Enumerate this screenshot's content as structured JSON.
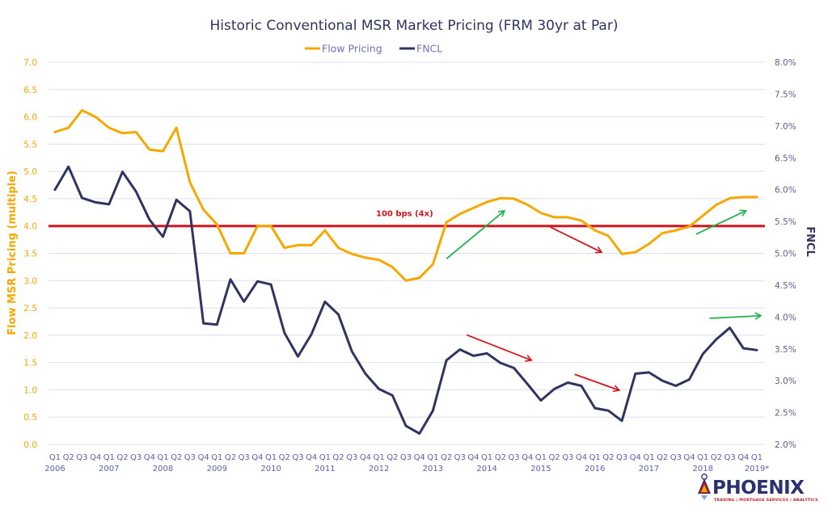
{
  "chart_data": {
    "type": "line",
    "title": "Historic Conventional MSR Market Pricing (FRM 30yr at Par)",
    "xlabel": "",
    "ylabel_left": "Flow MSR Pricing (multiple)",
    "ylabel_right": "FNCL",
    "ylim_left": [
      0,
      7
    ],
    "ylim_right": [
      2.0,
      8.0
    ],
    "yticks_left": [
      "0.0",
      "0.5",
      "1.0",
      "1.5",
      "2.0",
      "2.5",
      "3.0",
      "3.5",
      "4.0",
      "4.5",
      "5.0",
      "5.5",
      "6.0",
      "6.5",
      "7.0"
    ],
    "yticks_right": [
      "2.0%",
      "2.5%",
      "3.0%",
      "3.5%",
      "4.0%",
      "4.5%",
      "5.0%",
      "5.5%",
      "6.0%",
      "6.5%",
      "7.0%",
      "7.5%",
      "8.0%"
    ],
    "grid": true,
    "legend_position": "top-center",
    "quarter_labels": [
      "Q1",
      "Q2",
      "Q3",
      "Q4",
      "Q1",
      "Q2",
      "Q3",
      "Q4",
      "Q1",
      "Q2",
      "Q3",
      "Q4",
      "Q1",
      "Q2",
      "Q3",
      "Q4",
      "Q1",
      "Q2",
      "Q3",
      "Q4",
      "Q1",
      "Q2",
      "Q3",
      "Q4",
      "Q1",
      "Q2",
      "Q3",
      "Q4",
      "Q1",
      "Q2",
      "Q3",
      "Q4",
      "Q1",
      "Q2",
      "Q3",
      "Q4",
      "Q1",
      "Q2",
      "Q3",
      "Q4",
      "Q1",
      "Q2",
      "Q3",
      "Q4",
      "Q1",
      "Q2",
      "Q3",
      "Q4",
      "Q1",
      "Q2",
      "Q3",
      "Q4",
      "Q1"
    ],
    "year_labels": [
      {
        "label": "2006",
        "index": 0
      },
      {
        "label": "2007",
        "index": 4
      },
      {
        "label": "2008",
        "index": 8
      },
      {
        "label": "2009",
        "index": 12
      },
      {
        "label": "2010",
        "index": 16
      },
      {
        "label": "2011",
        "index": 20
      },
      {
        "label": "2012",
        "index": 24
      },
      {
        "label": "2013",
        "index": 28
      },
      {
        "label": "2014",
        "index": 32
      },
      {
        "label": "2015",
        "index": 36
      },
      {
        "label": "2016",
        "index": 40
      },
      {
        "label": "2017",
        "index": 44
      },
      {
        "label": "2018",
        "index": 48
      },
      {
        "label": "2019*",
        "index": 52
      }
    ],
    "series": [
      {
        "name": "Flow Pricing",
        "axis": "left",
        "color": "#f5a800",
        "values": [
          5.72,
          5.8,
          6.12,
          6.0,
          5.8,
          5.7,
          5.72,
          5.4,
          5.37,
          5.8,
          4.8,
          4.3,
          4.03,
          3.5,
          3.5,
          4.0,
          4.0,
          3.6,
          3.65,
          3.65,
          3.92,
          3.6,
          3.49,
          3.42,
          3.38,
          3.25,
          3.0,
          3.05,
          3.3,
          4.07,
          4.22,
          4.33,
          4.44,
          4.51,
          4.5,
          4.39,
          4.24,
          4.16,
          4.16,
          4.1,
          3.92,
          3.82,
          3.49,
          3.52,
          3.67,
          3.87,
          3.92,
          3.99,
          4.19,
          4.39,
          4.51,
          4.53,
          4.53
        ]
      },
      {
        "name": "FNCL",
        "axis": "right",
        "color": "#2f3560",
        "values": [
          6.0,
          6.36,
          5.87,
          5.8,
          5.77,
          6.28,
          5.97,
          5.53,
          5.26,
          5.84,
          5.66,
          3.9,
          3.88,
          4.59,
          4.24,
          4.56,
          4.51,
          3.75,
          3.38,
          3.73,
          4.24,
          4.04,
          3.46,
          3.11,
          2.87,
          2.77,
          2.29,
          2.17,
          2.53,
          3.32,
          3.49,
          3.39,
          3.43,
          3.28,
          3.2,
          2.95,
          2.69,
          2.87,
          2.97,
          2.92,
          2.57,
          2.53,
          2.37,
          3.11,
          3.13,
          3.0,
          2.92,
          3.02,
          3.42,
          3.65,
          3.83,
          3.51,
          3.48
        ]
      }
    ],
    "reference_line": {
      "label": "100 bps (4x)",
      "axis": "left",
      "value": 4.0,
      "color": "#d9141c"
    },
    "annotations": [
      {
        "type": "arrow",
        "color": "#22b24c",
        "from": {
          "index": 29,
          "left": 3.4
        },
        "to": {
          "index": 33.3,
          "left": 4.28
        }
      },
      {
        "type": "arrow",
        "color": "#d9141c",
        "from": {
          "index": 36.7,
          "left": 3.98
        },
        "to": {
          "index": 40.5,
          "left": 3.52
        }
      },
      {
        "type": "arrow",
        "color": "#d9141c",
        "from": {
          "index": 30.5,
          "right": 3.72
        },
        "to": {
          "index": 35.3,
          "right": 3.32
        }
      },
      {
        "type": "arrow",
        "color": "#d9141c",
        "from": {
          "index": 38.5,
          "right": 3.1
        },
        "to": {
          "index": 41.8,
          "right": 2.85
        }
      },
      {
        "type": "arrow",
        "color": "#22b24c",
        "from": {
          "index": 47.5,
          "left": 3.85
        },
        "to": {
          "index": 51.2,
          "left": 4.28
        }
      },
      {
        "type": "arrow",
        "color": "#22b24c",
        "from": {
          "index": 48.5,
          "right": 3.98
        },
        "to": {
          "index": 52.3,
          "right": 4.02
        }
      }
    ]
  },
  "logo": {
    "name": "PHOENIX",
    "tagline": "TRADING | MORTGAGE SERVICES | ANALYTICS"
  }
}
